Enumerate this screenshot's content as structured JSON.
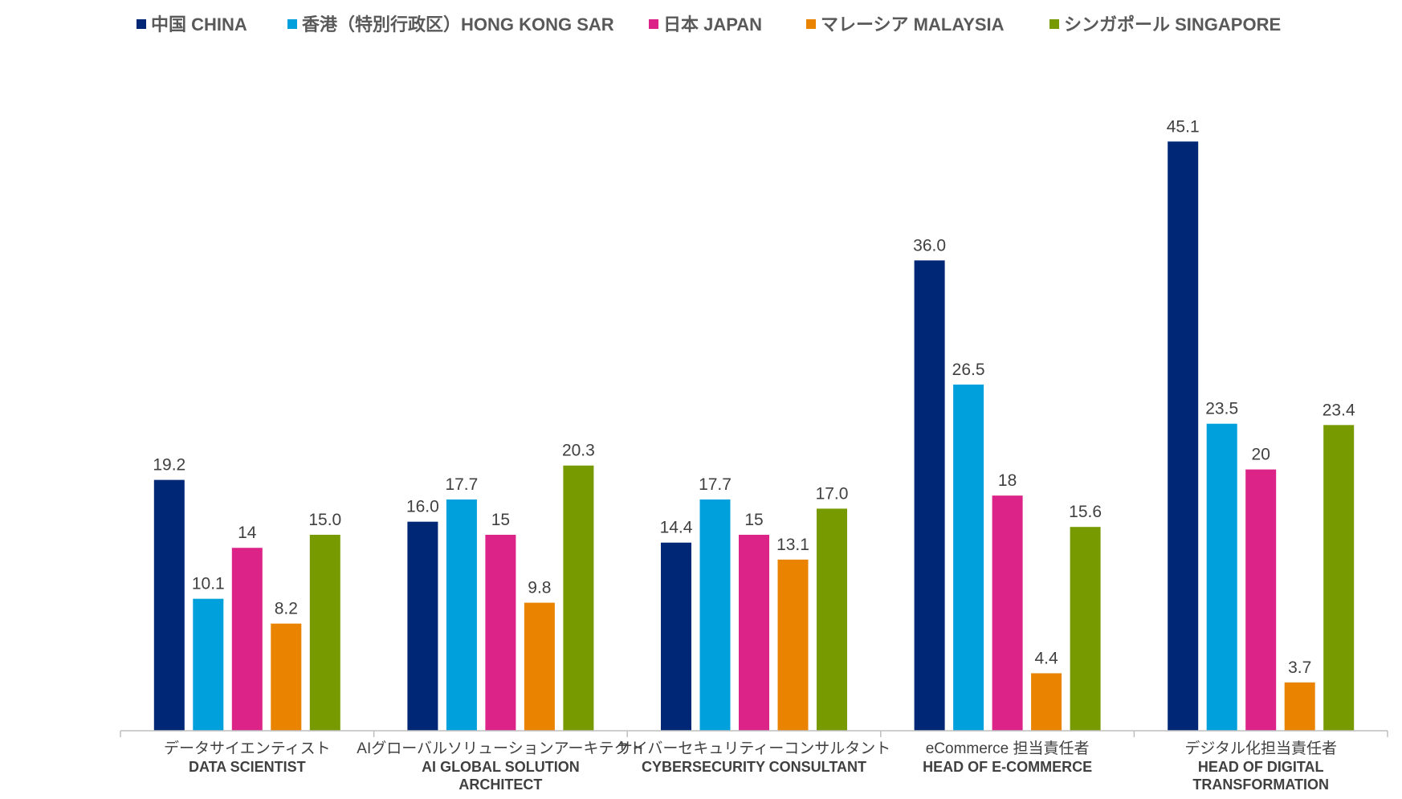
{
  "chart_data": {
    "type": "bar",
    "title": "",
    "xlabel": "",
    "ylabel": "",
    "ylim": [
      0,
      52
    ],
    "grid": false,
    "legend_position": "top",
    "categories": [
      {
        "ja": "データサイエンティスト",
        "en": [
          "DATA SCIENTIST"
        ]
      },
      {
        "ja": "AIグローバルソリューションアーキテクト",
        "en": [
          "AI GLOBAL SOLUTION",
          "ARCHITECT"
        ]
      },
      {
        "ja": "サイバーセキュリティーコンサルタント",
        "en": [
          "CYBERSECURITY CONSULTANT"
        ]
      },
      {
        "ja": "eCommerce 担当責任者",
        "en": [
          "HEAD OF E-COMMERCE"
        ]
      },
      {
        "ja": "デジタル化担当責任者",
        "en": [
          "HEAD OF DIGITAL",
          "TRANSFORMATION"
        ]
      }
    ],
    "series": [
      {
        "name": "中国 CHINA",
        "color": "#002776",
        "values": [
          19.2,
          16.0,
          14.4,
          36.0,
          45.1
        ],
        "labels": [
          "19.2",
          "16.0",
          "14.4",
          "36.0",
          "45.1"
        ]
      },
      {
        "name": "香港（特別行政区）HONG KONG SAR",
        "color": "#00A0DC",
        "values": [
          10.1,
          17.7,
          17.7,
          26.5,
          23.5
        ],
        "labels": [
          "10.1",
          "17.7",
          "17.7",
          "26.5",
          "23.5"
        ]
      },
      {
        "name": "日本 JAPAN",
        "color": "#DC2388",
        "values": [
          14,
          15,
          15,
          18,
          20
        ],
        "labels": [
          "14",
          "15",
          "15",
          "18",
          "20"
        ]
      },
      {
        "name": "マレーシア MALAYSIA",
        "color": "#E98300",
        "values": [
          8.2,
          9.8,
          13.1,
          4.4,
          3.7
        ],
        "labels": [
          "8.2",
          "9.8",
          "13.1",
          "4.4",
          "3.7"
        ]
      },
      {
        "name": "シンガポール SINGAPORE",
        "color": "#779A00",
        "values": [
          15.0,
          20.3,
          17.0,
          15.6,
          23.4
        ],
        "labels": [
          "15.0",
          "20.3",
          "17.0",
          "15.6",
          "23.4"
        ]
      }
    ]
  }
}
